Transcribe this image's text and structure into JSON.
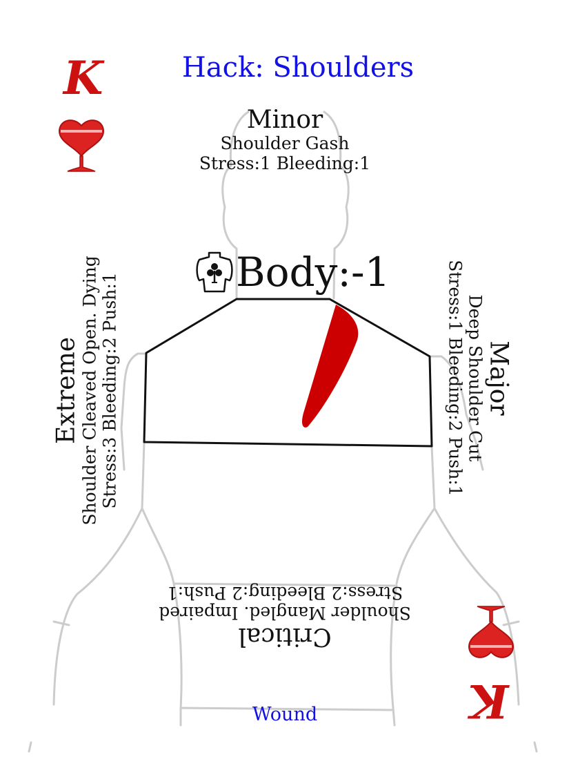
{
  "card": {
    "title": "Hack: Shoulders",
    "rank": "K",
    "suit": "hearts",
    "suit_icon": "heart-goblet-icon",
    "footer": "Wound"
  },
  "body_stat": {
    "label": "Body:-1",
    "icon": "torso-club-icon"
  },
  "wounds": {
    "minor": {
      "label": "Minor",
      "name": "Shoulder Gash",
      "stats": "Stress:1 Bleeding:1"
    },
    "major": {
      "label": "Major",
      "name": "Deep Shoulder Cut",
      "stats": "Stress:1 Bleeding:2 Push:1"
    },
    "critical": {
      "label": "Critical",
      "name": "Shoulder Mangled. Impaired",
      "stats": "Stress:2 Bleeding:2 Push:1"
    },
    "extreme": {
      "label": "Extreme",
      "name": "Shoulder Cleaved Open. Dying",
      "stats": "Stress:3 Bleeding:2 Push:1"
    }
  },
  "colors": {
    "title": "#1212e6",
    "rank": "#cc1111",
    "wound_mark": "#cc0000",
    "silhouette": "#cccccc",
    "outline": "#111111"
  }
}
